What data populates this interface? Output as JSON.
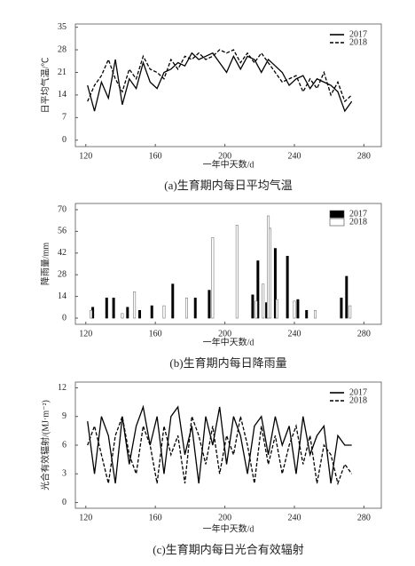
{
  "chart_data": [
    {
      "type": "line",
      "caption": "(a)生育期内每日平均气温",
      "xlabel": "一年中天数/d",
      "ylabel": "日平均气温/℃",
      "xlim": [
        114,
        290
      ],
      "xticks": [
        120,
        160,
        200,
        240,
        280
      ],
      "ylim": [
        -2,
        36
      ],
      "yticks": [
        0,
        7,
        14,
        21,
        28,
        35
      ],
      "legend": "upper right",
      "x": [
        121,
        125,
        129,
        133,
        137,
        141,
        145,
        149,
        153,
        157,
        161,
        165,
        169,
        173,
        177,
        181,
        185,
        189,
        193,
        197,
        201,
        205,
        209,
        213,
        217,
        221,
        225,
        229,
        233,
        237,
        241,
        245,
        249,
        253,
        257,
        261,
        265,
        269,
        273
      ],
      "series": [
        {
          "name": "2017",
          "color": "#000000",
          "linestyle": "solid",
          "values": [
            17,
            9,
            18,
            13,
            25,
            11,
            19,
            16,
            24,
            18,
            16,
            21,
            22,
            24,
            23,
            27,
            25,
            26,
            27,
            24,
            21,
            26,
            22,
            26,
            25,
            21,
            25,
            23,
            21,
            17,
            19,
            20,
            16,
            19,
            18,
            17,
            15,
            9,
            12
          ]
        },
        {
          "name": "2018",
          "color": "#000000",
          "linestyle": "dashed",
          "values": [
            12,
            17,
            20,
            25,
            19,
            15,
            22,
            19,
            26,
            22,
            21,
            19,
            25,
            22,
            26,
            25,
            27,
            25,
            26,
            28,
            27,
            28,
            24,
            27,
            24,
            27,
            24,
            21,
            18,
            19,
            20,
            15,
            19,
            16,
            21,
            14,
            18,
            12,
            14
          ]
        }
      ]
    },
    {
      "type": "bar",
      "caption": "(b)生育期内每日降雨量",
      "xlabel": "一年中天数/d",
      "ylabel": "降雨量/mm",
      "xlim": [
        114,
        290
      ],
      "xticks": [
        120,
        160,
        200,
        240,
        280
      ],
      "ylim": [
        -4,
        74
      ],
      "yticks": [
        0,
        14,
        28,
        42,
        56,
        70
      ],
      "legend": "upper right",
      "series": [
        {
          "name": "2017",
          "color": "#000000",
          "x": [
            124,
            132,
            136,
            144,
            151,
            158,
            170,
            183,
            191,
            216,
            219,
            224,
            229,
            236,
            242,
            247,
            267,
            270
          ],
          "values": [
            7,
            13,
            13,
            7,
            5,
            8,
            22,
            13,
            18,
            15,
            37,
            10,
            45,
            40,
            12,
            5,
            13,
            27
          ]
        },
        {
          "name": "2018",
          "color": "#ffffff",
          "x": [
            123,
            141,
            148,
            165,
            178,
            193,
            207,
            218,
            222,
            225,
            226,
            230,
            240,
            252,
            272
          ],
          "values": [
            5,
            3,
            17,
            8,
            13,
            52,
            60,
            11,
            22,
            66,
            58,
            12,
            11,
            5,
            8
          ]
        }
      ]
    },
    {
      "type": "line",
      "caption": "(c)生育期内每日光合有效辐射",
      "xlabel": "一年中天数/d",
      "ylabel": "光合有效辐射/(MJ·m⁻²)",
      "xlim": [
        114,
        290
      ],
      "xticks": [
        120,
        160,
        200,
        240,
        280
      ],
      "ylim": [
        -0.6,
        12.6
      ],
      "yticks": [
        0,
        3,
        6,
        9,
        12
      ],
      "legend": "upper right",
      "x": [
        121,
        125,
        129,
        133,
        137,
        141,
        145,
        149,
        153,
        157,
        161,
        165,
        169,
        173,
        177,
        181,
        185,
        189,
        193,
        197,
        201,
        205,
        209,
        213,
        217,
        221,
        225,
        229,
        233,
        237,
        241,
        245,
        249,
        253,
        257,
        261,
        265,
        269,
        273
      ],
      "series": [
        {
          "name": "2017",
          "color": "#000000",
          "linestyle": "solid",
          "values": [
            8.5,
            3,
            9,
            7,
            2,
            9,
            4,
            8,
            10,
            6,
            9,
            3,
            9,
            10,
            5,
            8,
            2,
            9,
            6,
            10,
            4,
            9,
            7,
            3,
            8,
            9,
            5,
            9,
            6,
            8,
            3,
            9,
            5,
            7,
            8,
            2,
            7,
            6,
            6
          ]
        },
        {
          "name": "2018",
          "color": "#000000",
          "linestyle": "dashed",
          "values": [
            6,
            8,
            5,
            2,
            7,
            9,
            5,
            3,
            8,
            6,
            2,
            8,
            5,
            7,
            2,
            9,
            7,
            4,
            8,
            3,
            7,
            5,
            9,
            6,
            2,
            8,
            4,
            7,
            3,
            6,
            8,
            4,
            7,
            2,
            6,
            5,
            2,
            4,
            3
          ]
        }
      ]
    }
  ]
}
